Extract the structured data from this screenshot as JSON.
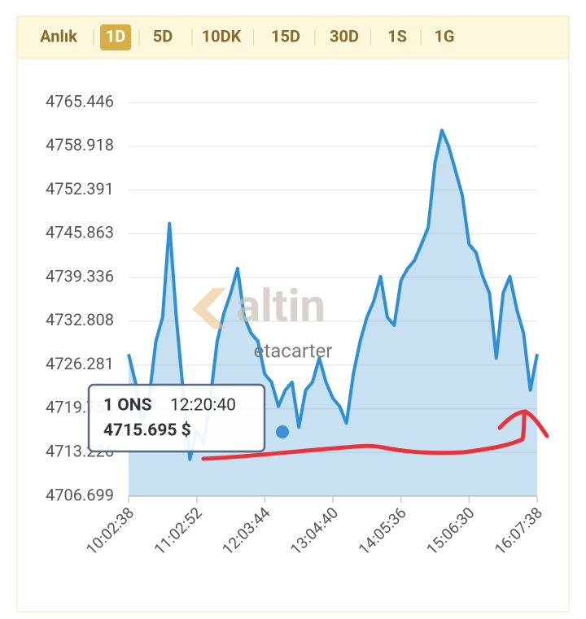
{
  "tabs": [
    {
      "label": "Anlık"
    },
    {
      "label": "1D",
      "active": true
    },
    {
      "label": "5D"
    },
    {
      "label": "10DK"
    },
    {
      "label": "15D"
    },
    {
      "label": "30D"
    },
    {
      "label": "1S"
    },
    {
      "label": "1G"
    }
  ],
  "chart_data": {
    "type": "area",
    "categories": [
      "10:02:38",
      null,
      null,
      null,
      null,
      null,
      null,
      null,
      null,
      null,
      "11:02:52",
      null,
      null,
      null,
      null,
      null,
      null,
      null,
      null,
      null,
      "12:03:44",
      null,
      null,
      null,
      null,
      null,
      null,
      null,
      null,
      null,
      "13:04:40",
      null,
      null,
      null,
      null,
      null,
      null,
      null,
      null,
      null,
      "14:05:36",
      null,
      null,
      null,
      null,
      null,
      null,
      null,
      null,
      null,
      "15:06:30",
      null,
      null,
      null,
      null,
      null,
      null,
      null,
      null,
      null,
      "16:07:38"
    ],
    "series": [
      {
        "color": "#2f8fd4",
        "values": [
          4727.9,
          4723.7,
          4717.6,
          4721.3,
          4729.8,
          4733.4,
          4747.4,
          4733.4,
          4722.5,
          4712.2,
          4716.4,
          4714.6,
          4721.3,
          4729.8,
          4734.0,
          4737.0,
          4740.7,
          4733.4,
          4731.0,
          4729.8,
          4724.9,
          4723.7,
          4720.1,
          4722.5,
          4723.7,
          4717.0,
          4722.5,
          4723.7,
          4727.3,
          4723.7,
          4721.3,
          4720.1,
          4717.6,
          4724.9,
          4729.8,
          4733.4,
          4735.8,
          4739.5,
          4733.4,
          4732.2,
          4738.9,
          4740.7,
          4741.9,
          4744.3,
          4746.8,
          4756.5,
          4761.3,
          4758.9,
          4755.3,
          4751.6,
          4744.3,
          4743.1,
          4739.5,
          4737.0,
          4727.3,
          4737.0,
          4739.5,
          4734.6,
          4731.0,
          4722.5,
          4727.9
        ]
      }
    ],
    "ylim": [
      4706.699,
      4765.446
    ],
    "yticks": [
      4706.699,
      4713.226,
      4719.753,
      4726.281,
      4732.808,
      4739.336,
      4745.863,
      4752.391,
      4758.918,
      4765.446
    ],
    "grid": true
  },
  "tooltip": {
    "label": "1 ONS",
    "time": "12:20:40",
    "value": "4715.695 $"
  },
  "watermark": {
    "logo": "altin",
    "user": "etacarter"
  }
}
